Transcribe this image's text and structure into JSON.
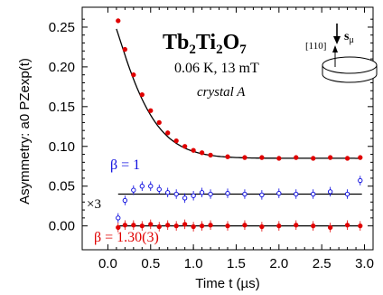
{
  "chart_data": {
    "type": "scatter",
    "xlabel": "Time t (µs)",
    "ylabel": "Asymmetry: a0 PZexp(t)",
    "xlim": [
      -0.3,
      3.1
    ],
    "ylim": [
      -0.03,
      0.275
    ],
    "xticks": [
      "0.0",
      "0.5",
      "1.0",
      "1.5",
      "2.0",
      "2.5",
      "3.0"
    ],
    "yticks": [
      "0.00",
      "0.05",
      "0.10",
      "0.15",
      "0.20",
      "0.25"
    ],
    "annotations": {
      "compound_base": "Tb",
      "compound_sub1": "2",
      "compound_mid": "Ti",
      "compound_sub2": "2",
      "compound_o": "O",
      "compound_sub3": "7",
      "conditions": "0.06 K, 13 mT",
      "crystal": "crystal A",
      "direction": "[110]",
      "spin_label": "s",
      "spin_sub": "μ",
      "beta_blue": "β = 1",
      "beta_red": "β = 1.30(3)",
      "times_three": "×3"
    },
    "series": [
      {
        "color": "#e00000",
        "marker": "filled circle",
        "x": [
          0.12,
          0.2,
          0.3,
          0.4,
          0.5,
          0.6,
          0.7,
          0.8,
          0.9,
          1.0,
          1.1,
          1.2,
          1.4,
          1.6,
          1.8,
          2.0,
          2.2,
          2.4,
          2.6,
          2.8,
          2.95
        ],
        "y": [
          0.258,
          0.222,
          0.19,
          0.165,
          0.145,
          0.13,
          0.117,
          0.107,
          0.1,
          0.095,
          0.092,
          0.089,
          0.087,
          0.086,
          0.086,
          0.085,
          0.086,
          0.085,
          0.086,
          0.085,
          0.086
        ],
        "fit": "stretched exponential, baseline 0.085"
      },
      {
        "color": "#0000dd",
        "marker": "open circle",
        "x": [
          0.12,
          0.2,
          0.3,
          0.4,
          0.5,
          0.6,
          0.7,
          0.8,
          0.9,
          1.0,
          1.1,
          1.2,
          1.4,
          1.6,
          1.8,
          2.0,
          2.2,
          2.4,
          2.6,
          2.8,
          2.95
        ],
        "y": [
          0.01,
          0.032,
          0.045,
          0.05,
          0.05,
          0.046,
          0.042,
          0.04,
          0.035,
          0.038,
          0.042,
          0.04,
          0.041,
          0.04,
          0.039,
          0.041,
          0.04,
          0.04,
          0.043,
          0.04,
          0.057
        ],
        "fit": "flat line at 0.04"
      },
      {
        "color": "#e00000",
        "marker": "filled circle",
        "x": [
          0.12,
          0.2,
          0.3,
          0.4,
          0.5,
          0.6,
          0.7,
          0.8,
          0.9,
          1.0,
          1.1,
          1.2,
          1.4,
          1.6,
          1.8,
          2.0,
          2.2,
          2.4,
          2.6,
          2.8,
          2.95
        ],
        "y": [
          -0.002,
          0.001,
          0.001,
          0.0,
          0.002,
          -0.001,
          0.001,
          0.0,
          0.002,
          -0.001,
          0.0,
          0.001,
          0.0,
          0.001,
          -0.001,
          0.0,
          0.001,
          0.0,
          -0.002,
          0.001,
          0.0
        ],
        "fit": "flat line at 0.00"
      }
    ]
  }
}
